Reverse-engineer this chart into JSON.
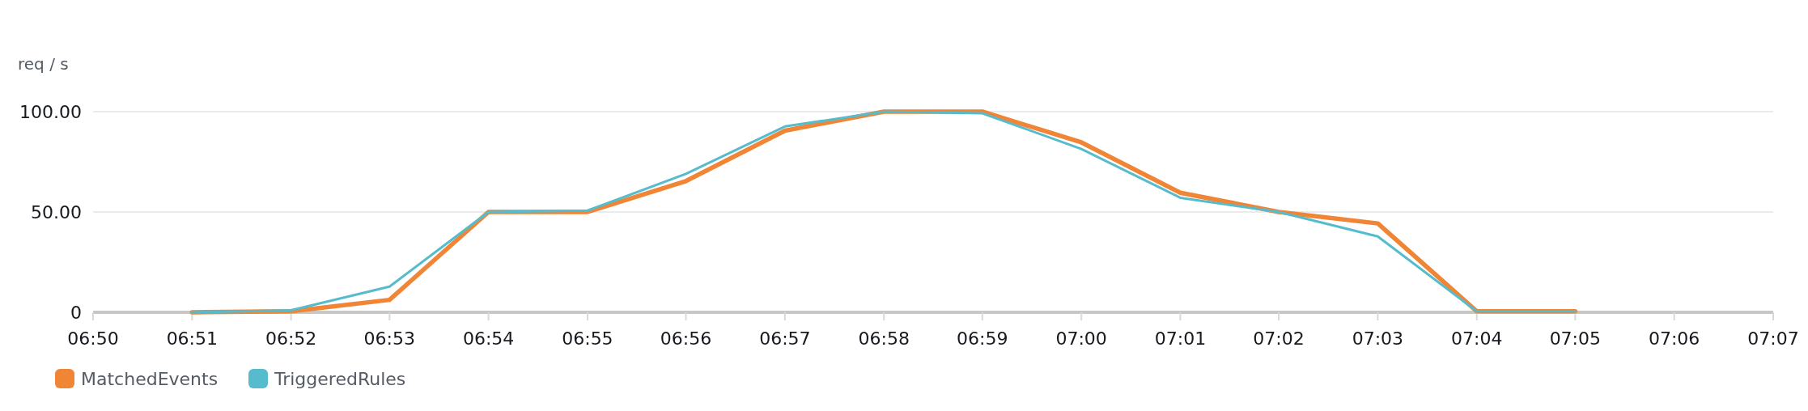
{
  "chart_data": {
    "type": "line",
    "ylabel": "req / s",
    "x": [
      6.85,
      6.8667,
      6.8833,
      6.9,
      6.9167,
      6.9333,
      6.95,
      6.9667,
      6.9833,
      7,
      7.0167,
      7.0333,
      7.05,
      7.0667,
      7.0833
    ],
    "series": [
      {
        "name": "MatchedEvents",
        "color": "#f08536",
        "values": [
          0,
          0.5,
          6.2,
          50,
          50,
          65.4,
          90.5,
          100,
          100,
          84.7,
          59.6,
          50,
          44.3,
          0.5,
          0.5
        ]
      },
      {
        "name": "TriggeredRules",
        "color": "#56bccd",
        "values": [
          0,
          1,
          12.8,
          50,
          50.7,
          69,
          92.6,
          100,
          99.2,
          81.4,
          57.1,
          50,
          37.8,
          0.5,
          0.5
        ]
      }
    ],
    "xlim": [
      6.8333,
      7.1167
    ],
    "xticks": [
      {
        "value": 6.8333,
        "label": "06:50"
      },
      {
        "value": 6.85,
        "label": "06:51"
      },
      {
        "value": 6.8667,
        "label": "06:52"
      },
      {
        "value": 6.8833,
        "label": "06:53"
      },
      {
        "value": 6.9,
        "label": "06:54"
      },
      {
        "value": 6.9167,
        "label": "06:55"
      },
      {
        "value": 6.9333,
        "label": "06:56"
      },
      {
        "value": 6.95,
        "label": "06:57"
      },
      {
        "value": 6.9667,
        "label": "06:58"
      },
      {
        "value": 6.9833,
        "label": "06:59"
      },
      {
        "value": 7,
        "label": "07:00"
      },
      {
        "value": 7.0167,
        "label": "07:01"
      },
      {
        "value": 7.0333,
        "label": "07:02"
      },
      {
        "value": 7.05,
        "label": "07:03"
      },
      {
        "value": 7.0667,
        "label": "07:04"
      },
      {
        "value": 7.0833,
        "label": "07:05"
      },
      {
        "value": 7.1,
        "label": "07:06"
      },
      {
        "value": 7.1167,
        "label": "07:07"
      }
    ],
    "ylim": [
      0,
      100
    ],
    "yticks": [
      0,
      {
        "value": 50,
        "label": "50.00"
      },
      {
        "value": 100,
        "label": "100.00"
      }
    ],
    "grid": "y",
    "legend": "bottom left",
    "marker": "none",
    "line_style": "solid"
  }
}
